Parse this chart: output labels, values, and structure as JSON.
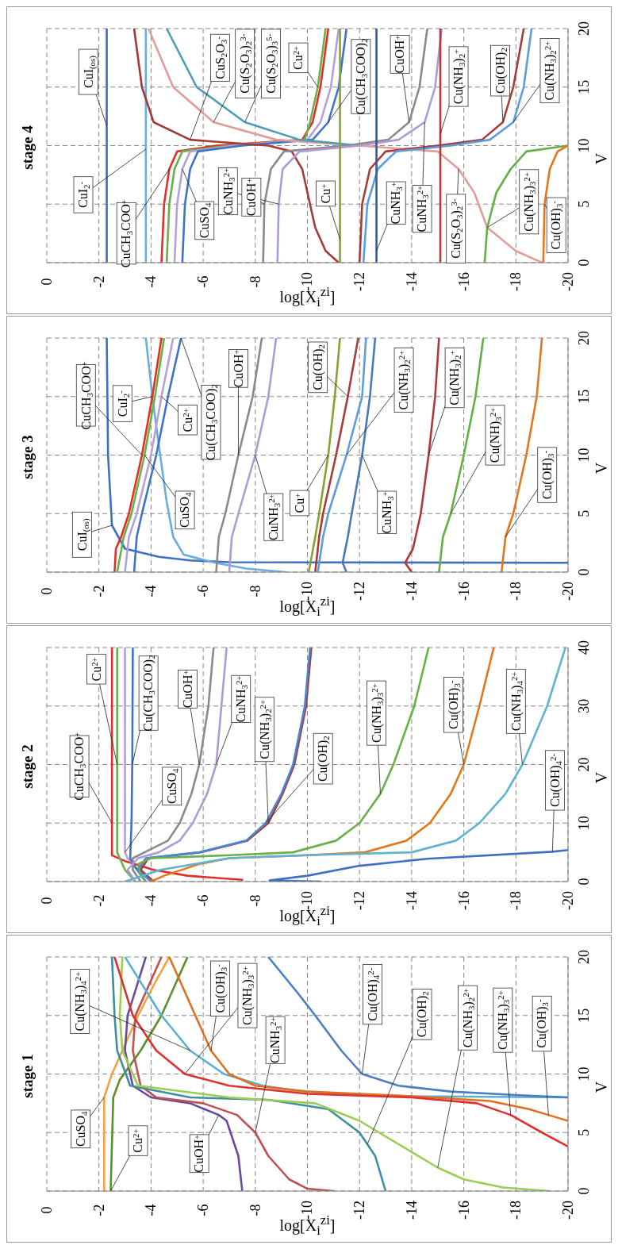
{
  "chart_data": [
    {
      "type": "line",
      "title": "stage 4",
      "xlabel": "log[X$_{i}$$^{zi}$]",
      "ylabel": "V",
      "xlim": [
        0,
        -20
      ],
      "xticks": [
        0,
        -2,
        -4,
        -6,
        -8,
        -10,
        -12,
        -14,
        -16,
        -18,
        -20
      ],
      "ylim": [
        0,
        20
      ],
      "yticks": [
        0,
        5,
        10,
        15,
        20
      ],
      "grid": true,
      "series": [
        {
          "color": "#3d6cc0",
          "values": [
            0,
            20
          ],
          "x": [
            -2.3,
            -2.3
          ]
        },
        {
          "color": "#6aaee0",
          "values": [
            0,
            20
          ],
          "x": [
            -3.8,
            -3.8
          ]
        },
        {
          "color": "#e0302a",
          "values": [
            0,
            5,
            8,
            9.5,
            10,
            10.5,
            12,
            15,
            20
          ],
          "x": [
            -4.4,
            -4.5,
            -4.7,
            -5.0,
            -6.5,
            -9.8,
            -10.2,
            -10.5,
            -10.8
          ]
        },
        {
          "color": "#6ab04a",
          "values": [
            0,
            5,
            8,
            9.5,
            10,
            10.5,
            12,
            15,
            20
          ],
          "x": [
            -4.6,
            -4.7,
            -4.9,
            -5.2,
            -7,
            -9.9,
            -10.1,
            -10.4,
            -10.7
          ]
        },
        {
          "color": "#b3a2d8",
          "values": [
            0,
            5,
            8,
            9.5,
            10,
            10.5,
            12,
            15,
            20
          ],
          "x": [
            -4.9,
            -5.0,
            -5.2,
            -5.5,
            -7.2,
            -10.0,
            -10.5,
            -10.9,
            -11.2
          ]
        },
        {
          "color": "#3f72c8",
          "values": [
            0,
            5,
            8,
            9.5,
            10,
            10.5,
            12,
            15,
            20
          ],
          "x": [
            -5.2,
            -5.3,
            -5.5,
            -5.8,
            -7.5,
            -10.2,
            -10.8,
            -11.2,
            -11.5
          ]
        },
        {
          "color": "#a23b38",
          "values": [
            0,
            1,
            3,
            6,
            8,
            9.5,
            10,
            10.5,
            12,
            15,
            20
          ],
          "x": [
            -11.2,
            -10.7,
            -10.3,
            -10.0,
            -9.8,
            -9.4,
            -8.5,
            -5.5,
            -4.1,
            -3.65,
            -3.35
          ]
        },
        {
          "color": "#e29c9a",
          "values": [
            0,
            1,
            3,
            6,
            8,
            9.5,
            10,
            10.5,
            12,
            15,
            20
          ],
          "x": [
            -19,
            -18,
            -16.9,
            -16.4,
            -15.8,
            -15,
            -12,
            -8.8,
            -6.4,
            -4.85,
            -3.9
          ]
        },
        {
          "color": "#4b9fb2",
          "values": [
            10,
            10.5,
            12,
            15,
            20
          ],
          "x": [
            -12,
            -9.7,
            -7.6,
            -5.75,
            -4.6
          ]
        },
        {
          "color": "#8a8a8a",
          "values": [
            0,
            5,
            8,
            9.5,
            10,
            10.5,
            12,
            15,
            20
          ],
          "x": [
            -8.3,
            -8.35,
            -8.6,
            -9.1,
            -11.5,
            -13.1,
            -13.9,
            -14.3,
            -14.6
          ]
        },
        {
          "color": "#b09ad6",
          "values": [
            0,
            5,
            8,
            9.5,
            10,
            10.5,
            12,
            15,
            20
          ],
          "x": [
            -8.85,
            -8.9,
            -9.05,
            -9.7,
            -12,
            -13.5,
            -14.5,
            -14.9,
            -15.15
          ]
        },
        {
          "color": "#86a330",
          "values": [
            0,
            20
          ],
          "x": [
            -11.25,
            -11.25
          ]
        },
        {
          "color": "#a83c38",
          "values": [
            0,
            5,
            8,
            9.5,
            10,
            10.5,
            12,
            15,
            20
          ],
          "x": [
            -12,
            -12.1,
            -12.4,
            -13,
            -15,
            -16.7,
            -17.5,
            -17.9,
            -18.3
          ]
        },
        {
          "color": "#5c9de0",
          "values": [
            0,
            5,
            8,
            9.5,
            10,
            10.5,
            12,
            15,
            20
          ],
          "x": [
            -12.15,
            -12.3,
            -12.7,
            -13.4,
            -15.5,
            -17,
            -17.9,
            -18.3,
            -18.6
          ]
        },
        {
          "color": "#2f5d9e",
          "values": [
            0,
            20
          ],
          "x": [
            -12.65,
            -12.65
          ]
        },
        {
          "color": "#b03838",
          "values": [
            0,
            20
          ],
          "x": [
            -15.1,
            -15.1
          ]
        },
        {
          "color": "#64b044",
          "values": [
            0,
            3,
            6,
            8,
            9.5,
            10
          ],
          "x": [
            -16.8,
            -16.9,
            -17.25,
            -17.8,
            -18.4,
            -20
          ]
        },
        {
          "color": "#e5761a",
          "values": [
            0,
            5,
            8,
            9.5,
            10
          ],
          "x": [
            -19.05,
            -19.1,
            -19.3,
            -19.6,
            -20
          ]
        }
      ],
      "annotations": [
        {
          "text": "CuI$_{(os)}$",
          "y": 11.7,
          "x": -2.3
        },
        {
          "text": "CuI$_{2}$$^{-}$",
          "y": 9.7,
          "x": -3.8
        },
        {
          "text": "CuCH$_{3}$COO$^{+}$",
          "y": 8,
          "x": -4.7
        },
        {
          "text": "CuSO$_{4}$",
          "y": 8,
          "x": -5.2
        },
        {
          "text": "CuNH$_{3}$$^{2+}$",
          "y": 5,
          "x": -8.9
        },
        {
          "text": "CuOH$^{+}$",
          "y": 5,
          "x": -8.35
        },
        {
          "text": "Cu$^{+}$",
          "y": 2,
          "x": -11.25
        },
        {
          "text": "CuNH$_{3}$$^{+}$",
          "y": 1,
          "x": -12.65
        },
        {
          "text": "CuNH$_{3}$$^{2+}$",
          "y": 12,
          "x": -14.5
        },
        {
          "text": "Cu(S$_{2}$O$_{3}$)$_{2}$$^{3-}$",
          "y": 8,
          "x": -15.8
        },
        {
          "text": "Cu(NH$_{3}$)$_{3}$$^{2+}$",
          "y": 3,
          "x": -16.9
        },
        {
          "text": "Cu(OH)$_{3}$$^{-}$",
          "y": 5,
          "x": -19.1
        },
        {
          "text": "CuS$_{2}$O$_{3}$$^{-}$",
          "y": 10.5,
          "x": -5.5
        },
        {
          "text": "Cu(S$_{2}$O$_{3}$)$_{2}$$^{3-}$",
          "y": 12,
          "x": -6.4
        },
        {
          "text": "Cu(S$_{2}$O$_{3}$)$_{3}$$^{5-}$",
          "y": 12,
          "x": -7.6
        },
        {
          "text": "Cu$^{2+}$",
          "y": 15,
          "x": -10.4
        },
        {
          "text": "Cu(CH$_{3}$COO)$_{2}$",
          "y": 12,
          "x": -10.8
        },
        {
          "text": "CuOH$^{+}$",
          "y": 12,
          "x": -13.9
        },
        {
          "text": "Cu(NH$_{3}$)$_{2}$$^{+}$",
          "y": 11,
          "x": -15.1
        },
        {
          "text": "Cu(OH)$_{2}$",
          "y": 12,
          "x": -17.5
        },
        {
          "text": "Cu(NH$_{3}$)$_{2}$$^{2+}$",
          "y": 12,
          "x": -17.9
        }
      ]
    },
    {
      "type": "line",
      "title": "stage 3",
      "xlabel": "log[X$_{i}$$^{zi}$]",
      "ylabel": "V",
      "xlim": [
        0,
        -20
      ],
      "xticks": [
        0,
        -2,
        -4,
        -6,
        -8,
        -10,
        -12,
        -14,
        -16,
        -18,
        -20
      ],
      "ylim": [
        0,
        20
      ],
      "yticks": [
        0,
        5,
        10,
        15,
        20
      ],
      "grid": true,
      "series": [
        {
          "color": "#3f6fc4",
          "values": [
            0.8,
            0.85,
            1,
            1.3,
            2,
            4,
            10,
            20
          ],
          "x": [
            -20,
            -7,
            -5.5,
            -4.3,
            -3,
            -2.5,
            -2.35,
            -2.3
          ]
        },
        {
          "color": "#6aaee0",
          "values": [
            0,
            0.3,
            0.8,
            1.5,
            3,
            6,
            10,
            15,
            20
          ],
          "x": [
            -9.15,
            -7.65,
            -6.45,
            -5.25,
            -4.85,
            -4.6,
            -4.35,
            -4.05,
            -3.8
          ]
        },
        {
          "color": "#e0302a",
          "values": [
            0,
            2,
            3,
            5,
            10,
            15,
            20
          ],
          "x": [
            -2.6,
            -2.65,
            -2.85,
            -3.15,
            -3.65,
            -4.05,
            -4.4
          ]
        },
        {
          "color": "#6ab04a",
          "values": [
            0,
            3,
            5,
            10,
            15,
            20
          ],
          "x": [
            -2.7,
            -2.95,
            -3.25,
            -3.75,
            -4.15,
            -4.5
          ]
        },
        {
          "color": "#b3a2d8",
          "values": [
            0,
            3,
            5,
            10,
            15,
            20
          ],
          "x": [
            -3.0,
            -3.15,
            -3.45,
            -4.0,
            -4.4,
            -4.85
          ]
        },
        {
          "color": "#3f72c8",
          "values": [
            0,
            3,
            5,
            10,
            15,
            20
          ],
          "x": [
            -3.35,
            -3.45,
            -3.65,
            -4.2,
            -4.65,
            -5.15
          ]
        },
        {
          "color": "#8a8a8a",
          "values": [
            0,
            3,
            5,
            10,
            15,
            20
          ],
          "x": [
            -6.5,
            -6.6,
            -6.85,
            -7.35,
            -7.9,
            -8.25
          ]
        },
        {
          "color": "#b09ad6",
          "values": [
            0,
            3,
            5,
            10,
            15,
            20
          ],
          "x": [
            -7.0,
            -7.1,
            -7.35,
            -8.0,
            -8.5,
            -8.8
          ]
        },
        {
          "color": "#86a330",
          "values": [
            0,
            3,
            5,
            10,
            15,
            20
          ],
          "x": [
            -10.05,
            -10.3,
            -10.45,
            -10.8,
            -11.05,
            -11.25
          ]
        },
        {
          "color": "#a83c38",
          "values": [
            0,
            3,
            5,
            10,
            15,
            20
          ],
          "x": [
            -10.3,
            -10.45,
            -10.6,
            -11.1,
            -11.55,
            -11.95
          ]
        },
        {
          "color": "#5c9de0",
          "values": [
            0,
            3,
            5,
            10,
            15,
            20
          ],
          "x": [
            -10.4,
            -10.6,
            -10.8,
            -11.5,
            -12.1,
            -12.25
          ]
        },
        {
          "color": "#4a78b8",
          "values": [
            0,
            0.8,
            3,
            5,
            10,
            15,
            20
          ],
          "x": [
            -11.5,
            -11.35,
            -11.55,
            -11.7,
            -12.1,
            -12.4,
            -12.6
          ]
        },
        {
          "color": "#b03838",
          "values": [
            0,
            0.8,
            2,
            5,
            10,
            15,
            20
          ],
          "x": [
            -14,
            -13.75,
            -14.05,
            -14.35,
            -14.65,
            -14.9,
            -15.05
          ]
        },
        {
          "color": "#64b044",
          "values": [
            0,
            3,
            5,
            10,
            15,
            20
          ],
          "x": [
            -15.05,
            -15.2,
            -15.5,
            -16.0,
            -16.45,
            -16.75
          ]
        },
        {
          "color": "#e5761a",
          "values": [
            0,
            3,
            5,
            10,
            15,
            20
          ],
          "x": [
            -17.45,
            -17.6,
            -17.9,
            -18.4,
            -18.8,
            -19.0
          ]
        }
      ],
      "annotations": [
        {
          "text": "CuI$_{(os)}$",
          "y": 4,
          "x": -2.5
        },
        {
          "text": "CuCH$_{3}$COO$^{+}$",
          "y": 10,
          "x": -3.65
        },
        {
          "text": "CuI$_{2}$$^{-}$",
          "y": 15,
          "x": -4.05
        },
        {
          "text": "Cu$^{2+}$",
          "y": 15,
          "x": -4.4
        },
        {
          "text": "CuSO$_{4}$",
          "y": 10,
          "x": -3.75
        },
        {
          "text": "Cu(CH$_{3}$COO)$_{2}$",
          "y": 20,
          "x": -5.15
        },
        {
          "text": "CuOH$^{+}$",
          "y": 10,
          "x": -7.35
        },
        {
          "text": "CuNH$_{3}$$^{2+}$",
          "y": 10,
          "x": -8.0
        },
        {
          "text": "Cu$^{+}$",
          "y": 10,
          "x": -10.8
        },
        {
          "text": "Cu(OH)$_{2}$",
          "y": 15,
          "x": -11.55
        },
        {
          "text": "Cu(NH$_{3}$)$_{2}$$^{2+}$",
          "y": 10,
          "x": -11.5
        },
        {
          "text": "CuNH$_{3}$$^{+}$",
          "y": 10,
          "x": -12.1
        },
        {
          "text": "Cu(NH$_{3}$)$_{2}$$^{+}$",
          "y": 10,
          "x": -14.65
        },
        {
          "text": "Cu(NH)$_{3}$$^{2+}$",
          "y": 5,
          "x": -15.5
        },
        {
          "text": "Cu(OH)$_{3}$$^{-}$",
          "y": 3,
          "x": -17.6
        }
      ]
    },
    {
      "type": "line",
      "title": "stage 2",
      "xlabel": "log[X$_{i}$$^{zi}$]",
      "ylabel": "V",
      "xlim": [
        0,
        -20
      ],
      "xticks": [
        0,
        -2,
        -4,
        -6,
        -8,
        -10,
        -12,
        -14,
        -16,
        -18,
        -20
      ],
      "ylim": [
        0,
        40
      ],
      "yticks": [
        0,
        10,
        20,
        30,
        40
      ],
      "grid": true,
      "series": [
        {
          "color": "#e0302a",
          "values": [
            0.3,
            1,
            2,
            3.5,
            4.5,
            10,
            20,
            40
          ],
          "x": [
            -7.5,
            -5.4,
            -4.1,
            -3,
            -2.5,
            -2.5,
            -2.5,
            -2.5
          ]
        },
        {
          "color": "#6ab04a",
          "values": [
            0,
            2,
            4,
            5,
            20,
            40
          ],
          "x": [
            -3.4,
            -3.0,
            -2.8,
            -2.7,
            -2.7,
            -2.7
          ]
        },
        {
          "color": "#b3a2d8",
          "values": [
            0,
            2,
            4,
            5,
            20,
            40
          ],
          "x": [
            -4,
            -3.5,
            -3.1,
            -3.0,
            -3.0,
            -3.0
          ]
        },
        {
          "color": "#3f72c8",
          "values": [
            0,
            3,
            4,
            10,
            20,
            40
          ],
          "x": [
            -3.8,
            -3.3,
            -3.2,
            -3.25,
            -3.28,
            -3.3
          ]
        },
        {
          "color": "#8a8a8a",
          "values": [
            0,
            2,
            4,
            5,
            7,
            10,
            15,
            20,
            30,
            40
          ],
          "x": [
            -3.6,
            -3.3,
            -3.3,
            -3.75,
            -4.65,
            -5.1,
            -5.55,
            -5.85,
            -6.2,
            -6.4
          ]
        },
        {
          "color": "#b09ad6",
          "values": [
            0,
            2,
            4,
            5,
            7,
            10,
            15,
            20,
            30,
            40
          ],
          "x": [
            -3.4,
            -3.1,
            -3.5,
            -4.3,
            -5.1,
            -5.6,
            -6.15,
            -6.5,
            -6.7,
            -6.9
          ]
        },
        {
          "color": "#a83c38",
          "values": [
            0,
            2,
            4,
            5,
            7,
            10,
            15,
            20,
            30,
            40
          ],
          "x": [
            -4.1,
            -3.6,
            -3.9,
            -5.9,
            -7.7,
            -8.5,
            -9.05,
            -9.5,
            -9.95,
            -10.15
          ]
        },
        {
          "color": "#4a86d8",
          "values": [
            0,
            2,
            4,
            5,
            7,
            10,
            15,
            20,
            30,
            40
          ],
          "x": [
            -4,
            -3.5,
            -3.8,
            -5.85,
            -7.65,
            -8.4,
            -9.0,
            -9.45,
            -9.9,
            -10.1
          ]
        },
        {
          "color": "#6ab04a",
          "values": [
            0,
            1,
            3,
            4,
            4.5,
            5,
            7,
            10,
            15,
            20,
            30,
            40
          ],
          "x": [
            -3.8,
            -3.6,
            -3.5,
            -4,
            -7.05,
            -9.45,
            -11.1,
            -12.0,
            -12.8,
            -13.3,
            -14.1,
            -14.65
          ]
        },
        {
          "color": "#e5761a",
          "values": [
            0,
            1,
            3,
            4,
            4.5,
            5,
            7,
            10,
            15,
            20,
            30,
            40
          ],
          "x": [
            -4,
            -4.5,
            -5.85,
            -7,
            -10,
            -12.2,
            -13.8,
            -14.7,
            -15.5,
            -16.0,
            -16.6,
            -17.15
          ]
        },
        {
          "color": "#5fb4d0",
          "values": [
            0,
            2,
            4,
            4.5,
            5,
            7,
            10,
            15,
            20,
            30,
            40
          ],
          "x": [
            -3.0,
            -4.35,
            -7,
            -10,
            -14,
            -15.7,
            -16.6,
            -17.6,
            -18.25,
            -19.2,
            -19.9
          ]
        },
        {
          "color": "#3f6fc4",
          "values": [
            0,
            0.2,
            1,
            2.7,
            3.9,
            5.1,
            5.4
          ],
          "x": [
            -10.5,
            -8.55,
            -10,
            -12,
            -14.6,
            -19.4,
            -20
          ]
        }
      ],
      "annotations": [
        {
          "text": "Cu$^{2+}$",
          "y": 20,
          "x": -2.7
        },
        {
          "text": "CuCH$_{3}$COO$^{+}$",
          "y": 10,
          "x": -2.5
        },
        {
          "text": "Cu(CH$_{3}$COO)$_{2}$",
          "y": 20,
          "x": -3.28
        },
        {
          "text": "CuSO$_{4}$",
          "y": 5,
          "x": -3.0
        },
        {
          "text": "CuOH$^{+}$",
          "y": 20,
          "x": -5.85
        },
        {
          "text": "CuNH$_{3}$$^{2+}$",
          "y": 20,
          "x": -6.5
        },
        {
          "text": "Cu(NH$_{3}$)$_{2}$$^{2+}$",
          "y": 10,
          "x": -8.5
        },
        {
          "text": "Cu(OH)$_{2}$",
          "y": 10,
          "x": -8.4
        },
        {
          "text": "Cu(NH$_{3}$)$_{3}$$^{2+}$",
          "y": 15,
          "x": -12.8
        },
        {
          "text": "Cu(OH)$_{3}$$^{-}$",
          "y": 20,
          "x": -16.0
        },
        {
          "text": "Cu(NH$_{3}$)$_{4}$$^{2+}$",
          "y": 20,
          "x": -18.25
        },
        {
          "text": "Cu(OH)$_{4}$$^{2-}$",
          "y": 5.1,
          "x": -19.4
        }
      ]
    },
    {
      "type": "line",
      "title": "stage 1",
      "xlabel": "log[X$_{i}$$^{zi}$]",
      "ylabel": "V",
      "xlim": [
        0,
        -20
      ],
      "xticks": [
        0,
        -2,
        -4,
        -6,
        -8,
        -10,
        -12,
        -14,
        -16,
        -18,
        -20
      ],
      "ylim": [
        0,
        20
      ],
      "yticks": [
        0,
        5,
        10,
        15,
        20
      ],
      "grid": true,
      "series": [
        {
          "color": "#f5a043",
          "values": [
            0,
            8,
            10,
            12,
            15,
            18,
            20
          ],
          "x": [
            -2.2,
            -2.2,
            -2.5,
            -2.9,
            -3.5,
            -4.2,
            -4.7
          ]
        },
        {
          "color": "#5a8f2e",
          "values": [
            0,
            8,
            9.5,
            12,
            15,
            20
          ],
          "x": [
            -2.45,
            -2.55,
            -2.8,
            -3.6,
            -4.4,
            -5.4
          ]
        },
        {
          "color": "#6a4aa0",
          "values": [
            0,
            3,
            6,
            6.5,
            7.5,
            8,
            9,
            12,
            15,
            20
          ],
          "x": [
            -7.5,
            -7.35,
            -6.9,
            -6.6,
            -5.5,
            -4.0,
            -3.3,
            -3.0,
            -3.1,
            -3.8
          ]
        },
        {
          "color": "#c05050",
          "values": [
            0,
            0.2,
            1,
            3,
            5,
            6.5,
            7.5,
            8,
            9,
            12,
            15,
            20
          ],
          "x": [
            -11.0,
            -10.0,
            -9.3,
            -8.5,
            -8.0,
            -7.3,
            -6.0,
            -4.2,
            -3.6,
            -3.3,
            -3.4,
            -4.4
          ]
        },
        {
          "color": "#3d8ea0",
          "values": [
            0,
            3,
            4,
            5,
            7,
            7.8,
            8,
            9,
            12,
            15,
            20
          ],
          "x": [
            -13,
            -12.6,
            -12.3,
            -12.0,
            -10.8,
            -8.5,
            -5.5,
            -3.2,
            -2.7,
            -2.6,
            -2.5
          ]
        },
        {
          "color": "#9acd50",
          "values": [
            0,
            0.3,
            1,
            2,
            4,
            6,
            7.5,
            8,
            9,
            12,
            15,
            20
          ],
          "x": [
            -19.3,
            -17.5,
            -16,
            -15,
            -13.5,
            -12,
            -10.3,
            -7,
            -3.5,
            -2.9,
            -2.8,
            -2.9
          ]
        },
        {
          "color": "#5bb0d0",
          "values": [
            8,
            8.1,
            8.3,
            8.6,
            9,
            10,
            12,
            15,
            20
          ],
          "x": [
            -20,
            -14,
            -11,
            -9.5,
            -8.3,
            -6.8,
            -5.5,
            -4.4,
            -3.0
          ]
        },
        {
          "color": "#e07020",
          "values": [
            6,
            6.5,
            7,
            7.7,
            8.1,
            8.5,
            9,
            10,
            12,
            15,
            17,
            20
          ],
          "x": [
            -20,
            -19.25,
            -18.5,
            -17,
            -14,
            -10,
            -8,
            -7,
            -6.3,
            -5.7,
            -5.3,
            -4.7
          ]
        },
        {
          "color": "#e03030",
          "values": [
            3.8,
            5,
            6.5,
            7.5,
            8,
            8.3,
            9,
            10,
            12,
            15,
            20
          ],
          "x": [
            -20,
            -19,
            -17.8,
            -16.5,
            -14,
            -10,
            -7,
            -5.3,
            -4.2,
            -3.3,
            -2.6
          ]
        },
        {
          "color": "#4a7fc0",
          "values": [
            8,
            8.2,
            8.5,
            9,
            10,
            12,
            15,
            17,
            20
          ],
          "x": [
            -20,
            -18,
            -15.5,
            -13.5,
            -12.1,
            -11.3,
            -10.3,
            -9.6,
            -8.5
          ]
        }
      ],
      "annotations": [
        {
          "text": "Cu(NH$_{3}$)$_{4}$$^{2+}$",
          "y": 12,
          "x": -5.5
        },
        {
          "text": "CuSO$_{4}$",
          "y": 8,
          "x": -2.2
        },
        {
          "text": "Cu$^{2+}$",
          "y": 0,
          "x": -2.45
        },
        {
          "text": "CuOH$^{+}$",
          "y": 6.5,
          "x": -6.6
        },
        {
          "text": "Cu(OH)$_{3}$$^{-}$",
          "y": 12,
          "x": -6.3
        },
        {
          "text": "Cu(NH$_{3}$)$_{3}$$^{2+}$",
          "y": 10,
          "x": -5.3
        },
        {
          "text": "CuNH$_{3}$$^{2+}$",
          "y": 5,
          "x": -8.0
        },
        {
          "text": "Cu(OH)$_{4}$$^{2-}$",
          "y": 10,
          "x": -12.1
        },
        {
          "text": "Cu(OH)$_{2}$",
          "y": 4,
          "x": -12.3
        },
        {
          "text": "Cu(NH$_{3}$)$_{2}$$^{2+}$",
          "y": 2,
          "x": -15
        },
        {
          "text": "Cu(NH$_{3}$)$_{3}$$^{2+}$",
          "y": 6.5,
          "x": -17.8
        },
        {
          "text": "Cu(OH)$_{3}$$^{-}$",
          "y": 6.5,
          "x": -19.25
        }
      ]
    }
  ]
}
